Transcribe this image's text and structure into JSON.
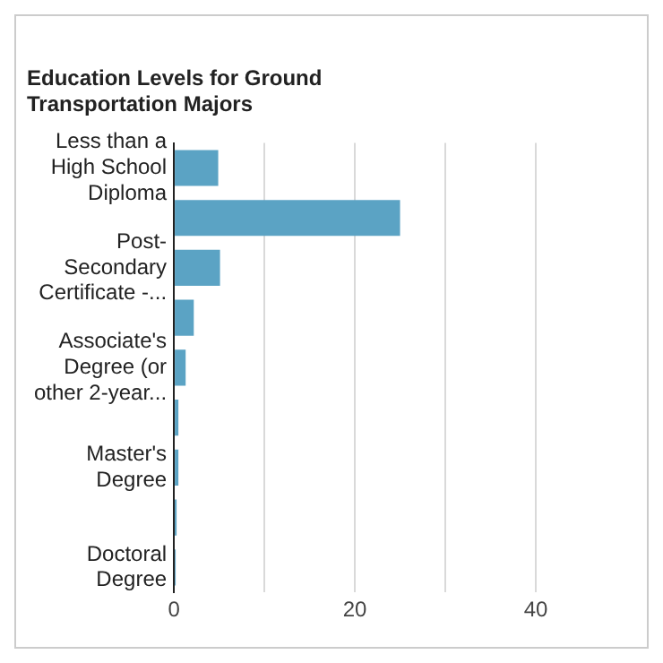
{
  "chart_data": {
    "type": "bar",
    "orientation": "horizontal",
    "title": "Education Levels for Ground Transportation Majors",
    "categories": [
      "Less than a High School Diploma",
      null,
      "Post-Secondary Certificate -...",
      null,
      "Associate's Degree (or other 2-year...",
      null,
      "Master's Degree",
      null,
      "Doctoral Degree"
    ],
    "values": [
      4.9,
      25.0,
      5.1,
      2.2,
      1.3,
      0.5,
      0.5,
      0.3,
      0.2
    ],
    "color": "#5ba3c4",
    "xlim": [
      0,
      40
    ],
    "xticks": [
      0,
      {
        "value": 10,
        "label": null
      },
      20,
      {
        "value": 30,
        "label": null
      },
      40
    ],
    "grid": "x",
    "legend": false
  }
}
